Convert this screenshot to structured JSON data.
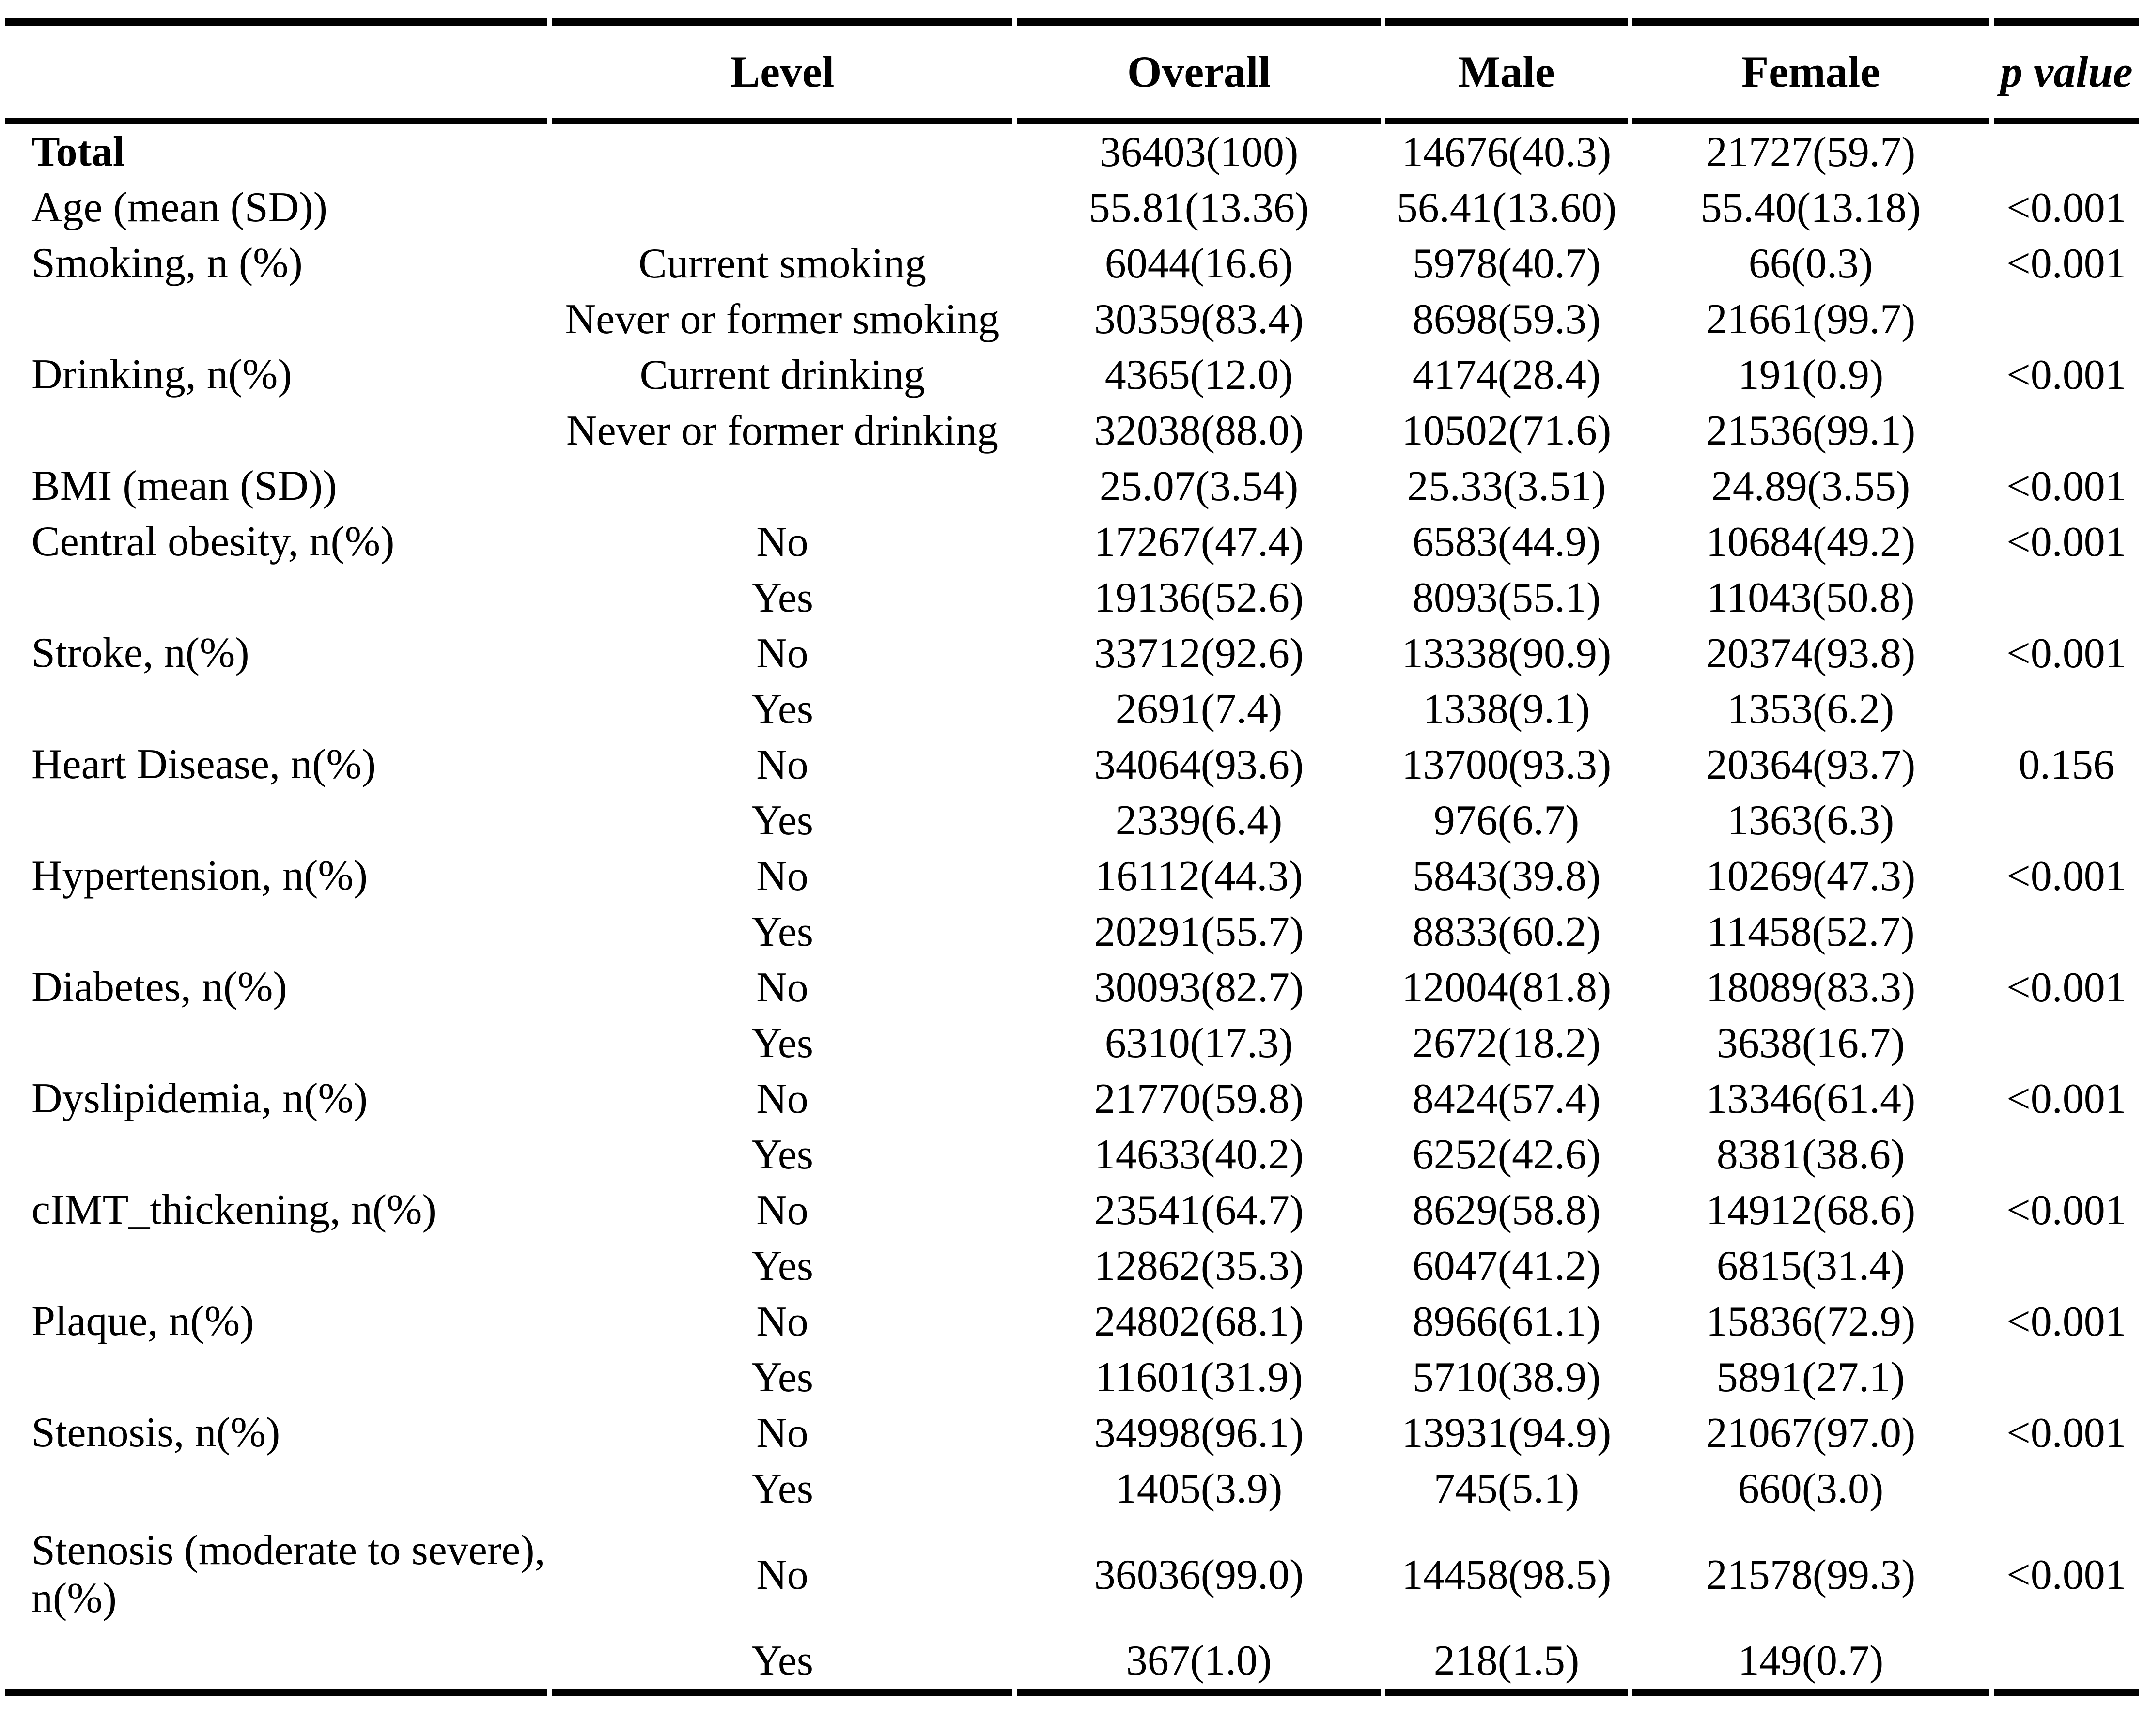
{
  "table": {
    "columns": [
      "",
      "Level",
      "Overall",
      "Male",
      "Female",
      "p value"
    ],
    "rows": [
      {
        "label": "Total",
        "bold": true,
        "level": "",
        "overall": "36403(100)",
        "male": "14676(40.3)",
        "female": "21727(59.7)",
        "p": ""
      },
      {
        "label": "Age (mean (SD))",
        "level": "",
        "overall": "55.81(13.36)",
        "male": "56.41(13.60)",
        "female": "55.40(13.18)",
        "p": "<0.001"
      },
      {
        "label": "Smoking, n (%)",
        "level": "Current smoking",
        "overall": "6044(16.6)",
        "male": "5978(40.7)",
        "female": "66(0.3)",
        "p": "<0.001"
      },
      {
        "label": "",
        "level": "Never or former smoking",
        "overall": "30359(83.4)",
        "male": "8698(59.3)",
        "female": "21661(99.7)",
        "p": ""
      },
      {
        "label": "Drinking, n(%)",
        "level": "Current drinking",
        "overall": "4365(12.0)",
        "male": "4174(28.4)",
        "female": "191(0.9)",
        "p": "<0.001"
      },
      {
        "label": "",
        "level": "Never or former drinking",
        "overall": "32038(88.0)",
        "male": "10502(71.6)",
        "female": "21536(99.1)",
        "p": ""
      },
      {
        "label": "BMI (mean (SD))",
        "level": "",
        "overall": "25.07(3.54)",
        "male": "25.33(3.51)",
        "female": "24.89(3.55)",
        "p": "<0.001"
      },
      {
        "label": "Central obesity, n(%)",
        "level": "No",
        "overall": "17267(47.4)",
        "male": "6583(44.9)",
        "female": "10684(49.2)",
        "p": "<0.001"
      },
      {
        "label": "",
        "level": "Yes",
        "overall": "19136(52.6)",
        "male": "8093(55.1)",
        "female": "11043(50.8)",
        "p": ""
      },
      {
        "label": "Stroke, n(%)",
        "level": "No",
        "overall": "33712(92.6)",
        "male": "13338(90.9)",
        "female": "20374(93.8)",
        "p": "<0.001"
      },
      {
        "label": "",
        "level": "Yes",
        "overall": "2691(7.4)",
        "male": "1338(9.1)",
        "female": "1353(6.2)",
        "p": ""
      },
      {
        "label": "Heart Disease, n(%)",
        "level": "No",
        "overall": "34064(93.6)",
        "male": "13700(93.3)",
        "female": "20364(93.7)",
        "p": "0.156"
      },
      {
        "label": "",
        "level": "Yes",
        "overall": "2339(6.4)",
        "male": "976(6.7)",
        "female": "1363(6.3)",
        "p": ""
      },
      {
        "label": "Hypertension, n(%)",
        "level": "No",
        "overall": "16112(44.3)",
        "male": "5843(39.8)",
        "female": "10269(47.3)",
        "p": "<0.001"
      },
      {
        "label": "",
        "level": "Yes",
        "overall": "20291(55.7)",
        "male": "8833(60.2)",
        "female": "11458(52.7)",
        "p": ""
      },
      {
        "label": "Diabetes, n(%)",
        "level": "No",
        "overall": "30093(82.7)",
        "male": "12004(81.8)",
        "female": "18089(83.3)",
        "p": "<0.001"
      },
      {
        "label": "",
        "level": "Yes",
        "overall": "6310(17.3)",
        "male": "2672(18.2)",
        "female": "3638(16.7)",
        "p": ""
      },
      {
        "label": "Dyslipidemia, n(%)",
        "level": "No",
        "overall": "21770(59.8)",
        "male": "8424(57.4)",
        "female": "13346(61.4)",
        "p": "<0.001"
      },
      {
        "label": "",
        "level": "Yes",
        "overall": "14633(40.2)",
        "male": "6252(42.6)",
        "female": "8381(38.6)",
        "p": ""
      },
      {
        "label": "cIMT_thickening, n(%)",
        "level": "No",
        "overall": "23541(64.7)",
        "male": "8629(58.8)",
        "female": "14912(68.6)",
        "p": "<0.001"
      },
      {
        "label": "",
        "level": "Yes",
        "overall": "12862(35.3)",
        "male": "6047(41.2)",
        "female": "6815(31.4)",
        "p": ""
      },
      {
        "label": "Plaque, n(%)",
        "level": "No",
        "overall": "24802(68.1)",
        "male": "8966(61.1)",
        "female": "15836(72.9)",
        "p": "<0.001"
      },
      {
        "label": "",
        "level": "Yes",
        "overall": "11601(31.9)",
        "male": "5710(38.9)",
        "female": "5891(27.1)",
        "p": ""
      },
      {
        "label": "Stenosis, n(%)",
        "level": "No",
        "overall": "34998(96.1)",
        "male": "13931(94.9)",
        "female": "21067(97.0)",
        "p": "<0.001"
      },
      {
        "label": "",
        "level": "Yes",
        "overall": "1405(3.9)",
        "male": "745(5.1)",
        "female": "660(3.0)",
        "p": ""
      },
      {
        "label": "Stenosis (moderate to severe), n(%)",
        "tall": true,
        "level": "No",
        "overall": "36036(99.0)",
        "male": "14458(98.5)",
        "female": "21578(99.3)",
        "p": "<0.001"
      },
      {
        "label": "",
        "level": "Yes",
        "overall": "367(1.0)",
        "male": "218(1.5)",
        "female": "149(0.7)",
        "p": ""
      }
    ]
  }
}
